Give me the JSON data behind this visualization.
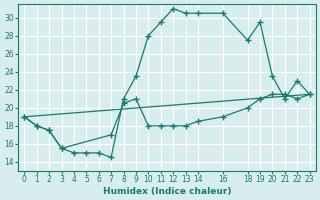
{
  "xlabel": "Humidex (Indice chaleur)",
  "ylabel": "",
  "bg_color": "#d8eeee",
  "grid_color": "#ffffff",
  "line_color": "#1a7a6e",
  "xlim": [
    -0.5,
    23.5
  ],
  "ylim": [
    13,
    31.5
  ],
  "xticks": [
    0,
    1,
    2,
    3,
    4,
    5,
    6,
    7,
    8,
    9,
    10,
    11,
    12,
    13,
    14,
    16,
    18,
    19,
    20,
    21,
    22,
    23
  ],
  "yticks": [
    14,
    16,
    18,
    20,
    22,
    24,
    26,
    28,
    30
  ],
  "line1_x": [
    0,
    1,
    2,
    3,
    4,
    5,
    6,
    7,
    8,
    9,
    10,
    11,
    12,
    13,
    14,
    16,
    18,
    19,
    20,
    21,
    22,
    23
  ],
  "line1_y": [
    19.0,
    18.0,
    17.5,
    15.5,
    15.0,
    15.0,
    15.0,
    14.5,
    21.0,
    23.5,
    28.0,
    29.5,
    31.0,
    30.5,
    30.5,
    30.5,
    27.5,
    29.5,
    23.5,
    21.0,
    23.0,
    21.5
  ],
  "line2_x": [
    0,
    1,
    2,
    3,
    7,
    8,
    9,
    10,
    11,
    12,
    13,
    14,
    16,
    18,
    19,
    20,
    21,
    22,
    23
  ],
  "line2_y": [
    19.0,
    18.0,
    17.5,
    15.5,
    17.0,
    20.5,
    21.0,
    18.0,
    18.0,
    18.0,
    18.0,
    18.5,
    19.0,
    20.0,
    21.0,
    21.5,
    21.5,
    21.0,
    21.5
  ],
  "line3_x": [
    0,
    23
  ],
  "line3_y": [
    19.0,
    21.5
  ]
}
